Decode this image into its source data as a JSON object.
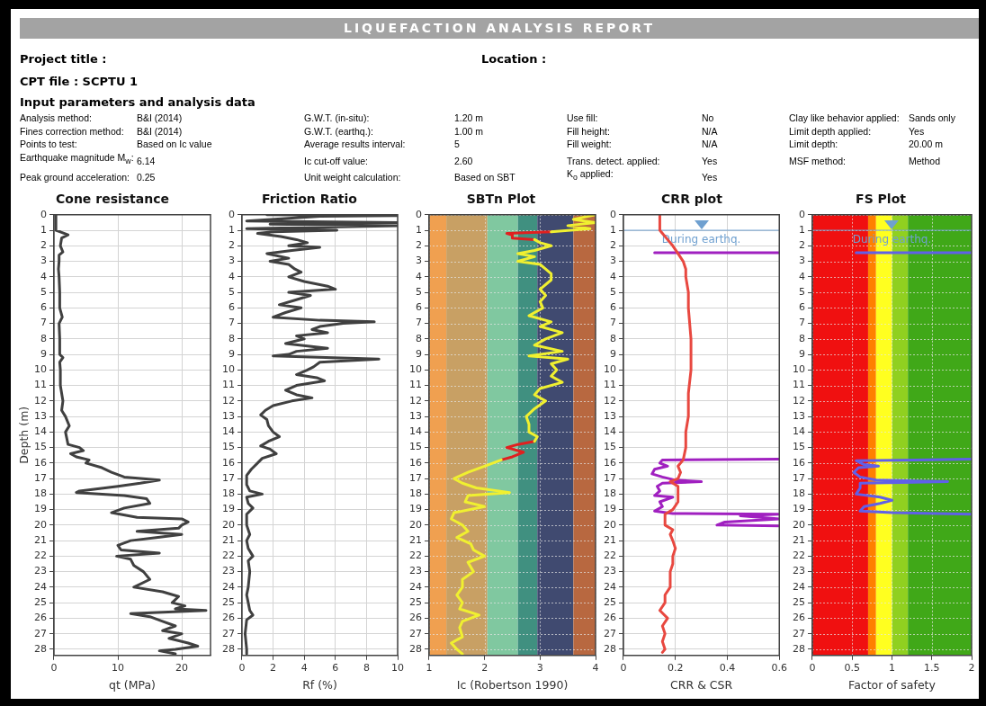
{
  "chart_data": [
    {
      "type": "other",
      "title": "LIQUEFACTION ANALYSIS REPORT",
      "annotations": [
        "Project title :",
        "Location :",
        "CPT file : SCPTU 1",
        "Input parameters and analysis data",
        "Analysis method:",
        "B&I (2014)",
        "G.W.T. (in-situ):",
        "1.20 m",
        "Use fill:",
        "No",
        "Clay like behavior applied:",
        "Sands only",
        "Fines correction method:",
        "B&I (2014)",
        "G.W.T. (earthq.):",
        "1.00 m",
        "Fill height:",
        "N/A",
        "Limit depth applied:",
        "Yes",
        "Points to test:",
        "Based on Ic value",
        "Average results interval:",
        "5",
        "Fill weight:",
        "N/A",
        "Limit depth:",
        "20.00 m",
        "Earthquake magnitude M$_{w}$:",
        "6.14",
        "Ic cut-off value:",
        "2.60",
        "Trans. detect. applied:",
        "Yes",
        "MSF method:",
        "Method",
        "Peak ground acceleration:",
        "0.25",
        "Unit weight calculation:",
        "Based on SBT",
        "K$_{o}$ applied:",
        "Yes"
      ]
    },
    {
      "type": "line",
      "title": "Cone resistance",
      "xlabel": "qt (MPa)",
      "ylabel": "Depth (m)",
      "xlim": [
        0,
        24.5
      ],
      "xticks": [
        0,
        10,
        20
      ],
      "ylim": [
        28.4,
        0
      ],
      "yticks": [
        0,
        1,
        2,
        3,
        4,
        5,
        6,
        7,
        8,
        9,
        10,
        11,
        12,
        13,
        14,
        15,
        16,
        17,
        18,
        19,
        20,
        21,
        22,
        23,
        24,
        25,
        26,
        27,
        28
      ],
      "grid": true,
      "marker": "none",
      "series": [
        {
          "color": "#404040",
          "x": [
            0.3,
            0.3,
            0.3,
            1,
            2.2,
            1.2,
            1,
            1.4,
            0.8,
            0.8,
            0.7,
            0.8,
            0.9,
            0.9,
            1.3,
            0.8,
            0.9,
            0.9,
            1.4,
            0.9,
            1,
            1,
            1.2,
            1.4,
            1.2,
            1.8,
            2.4,
            1.8,
            2.2,
            4,
            4.6,
            2.6,
            3.5,
            5.5,
            5,
            7.5,
            9,
            11,
            16.5,
            13.5,
            10,
            4,
            3.5,
            7,
            11,
            14.5,
            15,
            11,
            9,
            13,
            20,
            21,
            20,
            19.5,
            13,
            20,
            16,
            12,
            10,
            10.5,
            16.5,
            9.8,
            12,
            12.5,
            14,
            15,
            12.5,
            17,
            19.5,
            18.5,
            20.5,
            19,
            23.8,
            12,
            15,
            17,
            19,
            17,
            20,
            18,
            21,
            22.5,
            19,
            16.5,
            19
          ],
          "values": [
            0,
            0.5,
            1.0,
            1.1,
            1.3,
            1.5,
            2.0,
            2.4,
            2.6,
            3,
            3.5,
            4,
            5,
            6,
            6.6,
            7,
            8,
            9,
            9.2,
            9.5,
            10,
            11,
            11.5,
            12,
            12.6,
            13,
            13.6,
            14,
            14.8,
            15,
            15.2,
            15.4,
            15.6,
            15.8,
            16,
            16.3,
            16.6,
            16.9,
            17.1,
            17.3,
            17.5,
            17.8,
            17.9,
            18,
            18.1,
            18.3,
            18.6,
            18.9,
            19.2,
            19.5,
            19.6,
            19.8,
            20,
            20.2,
            20.4,
            20.6,
            20.8,
            21,
            21.3,
            21.6,
            21.8,
            22,
            22.2,
            22.6,
            23,
            23.5,
            24,
            24.3,
            24.6,
            25,
            25.2,
            25.4,
            25.5,
            25.7,
            25.9,
            26.2,
            26.5,
            26.8,
            27,
            27.3,
            27.6,
            27.8,
            28,
            28.1,
            28.3
          ]
        }
      ]
    },
    {
      "type": "line",
      "title": "Friction Ratio",
      "xlabel": "Rf (%)",
      "xlim": [
        0,
        10
      ],
      "xticks": [
        0,
        2,
        4,
        6,
        8,
        10
      ],
      "ylim": [
        28.4,
        0
      ],
      "yticks": [
        0,
        1,
        2,
        3,
        4,
        5,
        6,
        7,
        8,
        9,
        10,
        11,
        12,
        13,
        14,
        15,
        16,
        17,
        18,
        19,
        20,
        21,
        22,
        23,
        24,
        25,
        26,
        27,
        28
      ],
      "grid": true,
      "marker": "none",
      "series": [
        {
          "color": "#404040",
          "x": [
            1.6,
            10,
            5,
            0.3,
            10,
            1.8,
            10,
            0.3,
            6.1,
            2,
            1,
            2.5,
            3.5,
            4.2,
            3,
            5,
            3.2,
            1.6,
            3,
            1.8,
            3,
            3.4,
            3.8,
            3,
            4,
            5.5,
            6,
            3,
            4.4,
            3.4,
            2.4,
            3.8,
            2.8,
            2,
            5,
            8.5,
            6.5,
            5,
            4.5,
            5.5,
            3.5,
            4,
            2.8,
            5.5,
            3.5,
            3,
            2,
            8.8,
            5,
            4.6,
            4.2,
            3.5,
            4.8,
            5.3,
            3.5,
            2.8,
            3.5,
            4.5,
            3.2,
            2,
            1.5,
            1.2,
            1.6,
            1.7,
            2,
            2.4,
            1.7,
            1.2,
            1.8,
            2.2,
            1.3,
            1,
            0.6,
            0.3,
            0.3,
            0.5,
            1.3,
            0.3,
            0.4,
            0.7,
            0.3,
            0.3,
            0.5,
            0.3,
            0.4,
            0.7,
            0.4,
            0.5,
            0.4,
            0.3,
            0.4,
            0.5,
            0.7,
            0.3,
            0.2,
            0.3,
            0.3
          ],
          "values": [
            0,
            0.05,
            0.1,
            0.4,
            0.5,
            0.6,
            0.7,
            0.9,
            1.0,
            1.1,
            1.2,
            1.4,
            1.6,
            1.8,
            2.0,
            2.1,
            2.3,
            2.5,
            2.8,
            3,
            3.2,
            3.5,
            3.7,
            4,
            4.3,
            4.6,
            4.8,
            5.0,
            5.2,
            5.5,
            5.8,
            6.0,
            6.3,
            6.6,
            6.8,
            6.9,
            7.0,
            7.2,
            7.4,
            7.6,
            7.8,
            8.0,
            8.3,
            8.6,
            8.8,
            9.0,
            9.1,
            9.3,
            9.5,
            9.8,
            10,
            10.3,
            10.5,
            10.7,
            11,
            11.3,
            11.6,
            11.8,
            12.0,
            12.3,
            12.6,
            12.9,
            13.2,
            13.6,
            14,
            14.3,
            14.6,
            14.9,
            15.1,
            15.4,
            15.7,
            16,
            16.4,
            16.8,
            17.4,
            17.8,
            18.0,
            18.2,
            18.6,
            18.9,
            19.3,
            20,
            20.6,
            21,
            21.5,
            22,
            22.3,
            23,
            24,
            24.5,
            25,
            25.5,
            25.8,
            26.1,
            27,
            28,
            28.3
          ]
        }
      ]
    },
    {
      "type": "line",
      "title": "SBTn Plot",
      "xlabel": "Ic (Robertson 1990)",
      "xlim": [
        1,
        4
      ],
      "xticks": [
        1,
        2,
        3,
        4
      ],
      "ylim": [
        28.4,
        0
      ],
      "yticks": [
        0,
        1,
        2,
        3,
        4,
        5,
        6,
        7,
        8,
        9,
        10,
        11,
        12,
        13,
        14,
        15,
        16,
        17,
        18,
        19,
        20,
        21,
        22,
        23,
        24,
        25,
        26,
        27,
        28
      ],
      "grid": true,
      "marker": "none",
      "bands": [
        {
          "axis": "x",
          "from": 1,
          "to": 1.31,
          "color": "#f0a050"
        },
        {
          "axis": "x",
          "from": 1.31,
          "to": 2.05,
          "color": "#c8a064"
        },
        {
          "axis": "x",
          "from": 2.05,
          "to": 2.6,
          "color": "#80c8a0"
        },
        {
          "axis": "x",
          "from": 2.6,
          "to": 2.95,
          "color": "#409080"
        },
        {
          "axis": "x",
          "from": 2.95,
          "to": 3.6,
          "color": "#404a70"
        },
        {
          "axis": "x",
          "from": 3.6,
          "to": 4,
          "color": "#b86840"
        }
      ],
      "series": [
        {
          "color": "#f0f030",
          "x": [
            4,
            3.6,
            4,
            3.5,
            3.9,
            3.2,
            null,
            2.9,
            3.0,
            3.2,
            2.9,
            2.6,
            2.9,
            2.6,
            3.0,
            3.1,
            3.2,
            3.2,
            3.0,
            3.1,
            3.0,
            3.05,
            2.8,
            3.2,
            3.0,
            3.4,
            3.1,
            2.9,
            3.4,
            2.8,
            3.5,
            3.2,
            3.3,
            3.2,
            3.4,
            3.0,
            2.9,
            3.1,
            2.9,
            2.75,
            2.8,
            2.8,
            2.95,
            2.9,
            null,
            2.3,
            2.0,
            1.7,
            1.45,
            1.6,
            1.85,
            2.45,
            1.7,
            1.65,
            2.0,
            1.45,
            1.4,
            1.6,
            1.7,
            1.5,
            1.75,
            1.8,
            2.0,
            1.7,
            1.8,
            1.6,
            1.6,
            1.5,
            1.6,
            1.55,
            1.9,
            1.6,
            1.55,
            1.6,
            1.4,
            1.5,
            1.6
          ],
          "values": [
            0,
            0.3,
            0.5,
            0.7,
            0.9,
            1.1,
            null,
            1.6,
            1.8,
            2.0,
            2.3,
            2.5,
            2.7,
            3.0,
            3.2,
            3.5,
            3.8,
            4.2,
            4.8,
            5.2,
            5.6,
            6.0,
            6.5,
            6.9,
            7.2,
            7.6,
            8.0,
            8.4,
            8.8,
            9.1,
            9.3,
            9.6,
            10,
            10.4,
            10.8,
            11.2,
            11.6,
            12,
            12.5,
            13,
            13.5,
            14,
            14.3,
            14.6,
            null,
            15.8,
            16.2,
            16.6,
            17.0,
            17.3,
            17.6,
            17.9,
            18.1,
            18.5,
            18.8,
            19.2,
            19.6,
            20,
            20.4,
            20.8,
            21.2,
            21.6,
            22,
            22.4,
            23,
            23.5,
            24,
            24.5,
            25,
            25.4,
            25.8,
            26.2,
            26.6,
            27.2,
            27.6,
            28,
            28.3
          ]
        },
        {
          "color": "#e02020",
          "x": [
            3.2,
            2.4,
            2.5,
            2.5,
            2.9,
            null,
            2.9,
            2.6,
            2.4,
            2.7,
            2.5,
            2.3
          ],
          "values": [
            1.1,
            1.2,
            1.3,
            1.5,
            1.6,
            null,
            14.6,
            14.8,
            15.0,
            15.3,
            15.6,
            15.8
          ]
        }
      ]
    },
    {
      "type": "line",
      "title": "CRR plot",
      "xlabel": "CRR & CSR",
      "xlim": [
        0,
        0.6
      ],
      "xticks": [
        0,
        0.2,
        0.4,
        0.6
      ],
      "ylim": [
        28.4,
        0
      ],
      "yticks": [
        0,
        1,
        2,
        3,
        4,
        5,
        6,
        7,
        8,
        9,
        10,
        11,
        12,
        13,
        14,
        15,
        16,
        17,
        18,
        19,
        20,
        21,
        22,
        23,
        24,
        25,
        26,
        27,
        28
      ],
      "grid": true,
      "marker": "none",
      "ref_lines": [
        {
          "axis": "y",
          "value": 1,
          "label": "During earthq.",
          "color": "#6fa0d0"
        }
      ],
      "series": [
        {
          "color": "#e84840",
          "x": [
            0.14,
            0.14,
            0.15,
            0.17,
            0.19,
            0.21,
            0.23,
            0.24,
            0.24,
            0.25,
            0.25,
            0.26,
            0.26,
            0.25,
            0.25,
            0.24,
            0.24,
            0.23,
            0.21,
            0.22,
            0.21,
            0.18,
            0.21,
            0.21,
            0.19,
            0.16,
            0.16,
            0.19,
            0.18,
            0.19,
            0.2,
            0.19,
            0.19,
            0.18,
            0.18,
            0.16,
            0.16,
            0.14,
            0.17,
            0.15,
            0.16,
            0.15,
            0.16,
            0.15
          ],
          "values": [
            0,
            1.0,
            1.2,
            1.6,
            2,
            2.5,
            3,
            3.5,
            4,
            5,
            6,
            8,
            10,
            11.5,
            13,
            14,
            15,
            15.8,
            16.2,
            16.6,
            17.0,
            17.2,
            17.5,
            18.5,
            19,
            19.3,
            20,
            20.3,
            20.6,
            21,
            21.5,
            22,
            22.5,
            23,
            24,
            24.5,
            25,
            25.5,
            26,
            26.5,
            27,
            27.5,
            28,
            28.2
          ]
        },
        {
          "color": "#a020c0",
          "x": [
            0.12,
            0.6,
            null,
            0.6,
            0.15,
            0.14,
            0.17,
            0.12,
            0.11,
            0.15,
            0.2,
            0.3,
            0.15,
            0.13,
            0.14,
            0.12,
            0.19,
            0.14,
            0.15,
            0.12,
            0.19,
            0.6,
            0.45,
            0.6,
            0.39,
            0.36,
            0.6
          ],
          "values": [
            2.45,
            2.45,
            null,
            15.75,
            15.8,
            16.0,
            16.2,
            16.4,
            16.7,
            16.9,
            17.1,
            17.2,
            17.3,
            17.5,
            17.8,
            18.1,
            18.2,
            18.5,
            18.8,
            19.1,
            19.25,
            19.3,
            19.4,
            19.6,
            19.8,
            20.0,
            20.05
          ]
        }
      ]
    },
    {
      "type": "line",
      "title": "FS Plot",
      "xlabel": "Factor of safety",
      "xlim": [
        0,
        2
      ],
      "xticks": [
        0,
        0.5,
        1,
        1.5,
        2
      ],
      "ylim": [
        28.4,
        0
      ],
      "yticks": [
        0,
        1,
        2,
        3,
        4,
        5,
        6,
        7,
        8,
        9,
        10,
        11,
        12,
        13,
        14,
        15,
        16,
        17,
        18,
        19,
        20,
        21,
        22,
        23,
        24,
        25,
        26,
        27,
        28
      ],
      "grid": true,
      "marker": "none",
      "ref_lines": [
        {
          "axis": "y",
          "value": 1,
          "label": "During earthq.",
          "color": "#6fa0d0"
        }
      ],
      "bands": [
        {
          "axis": "x",
          "from": 0,
          "to": 0.7,
          "color": "#f01010"
        },
        {
          "axis": "x",
          "from": 0.7,
          "to": 0.8,
          "color": "#ff8000"
        },
        {
          "axis": "x",
          "from": 0.8,
          "to": 1.0,
          "color": "#ffff20"
        },
        {
          "axis": "x",
          "from": 1.0,
          "to": 1.2,
          "color": "#90d020"
        },
        {
          "axis": "x",
          "from": 1.2,
          "to": 2,
          "color": "#40a818"
        }
      ],
      "series": [
        {
          "color": "#6060e8",
          "x": [
            0.55,
            2,
            null,
            2,
            0.55,
            0.65,
            0.83,
            0.58,
            0.52,
            0.6,
            0.8,
            1.7,
            0.6,
            0.6,
            0.55,
            0.85,
            1.0,
            0.85,
            0.65,
            0.6,
            1.0,
            2
          ],
          "values": [
            2.45,
            2.45,
            null,
            15.75,
            15.85,
            16.1,
            16.2,
            16.3,
            16.6,
            16.9,
            17.1,
            17.2,
            17.3,
            17.6,
            18.0,
            18.2,
            18.4,
            18.6,
            18.8,
            19.1,
            19.2,
            19.3
          ]
        }
      ]
    }
  ]
}
